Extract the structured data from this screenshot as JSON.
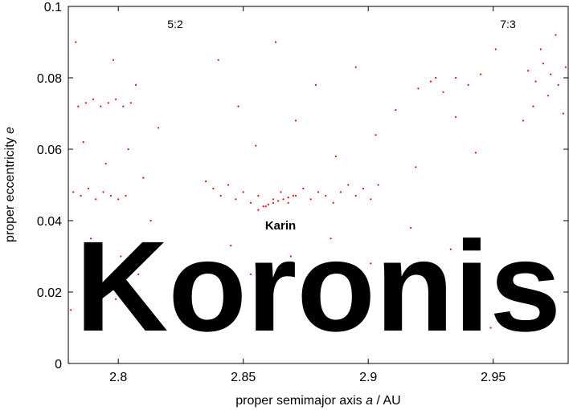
{
  "chart_data": {
    "type": "scatter",
    "title": "Koronis",
    "xlabel_prefix": "proper semimajor axis ",
    "xlabel_var": "a",
    "xlabel_suffix": " / AU",
    "ylabel_prefix": "proper eccentricity ",
    "ylabel_var": "e",
    "xlim": [
      2.78,
      2.98
    ],
    "ylim": [
      0,
      0.1
    ],
    "x_ticks": [
      {
        "value": 2.8,
        "label": "2.8"
      },
      {
        "value": 2.85,
        "label": "2.85"
      },
      {
        "value": 2.9,
        "label": "2.9"
      },
      {
        "value": 2.95,
        "label": "2.95"
      }
    ],
    "y_ticks": [
      {
        "value": 0,
        "label": "0"
      },
      {
        "value": 0.02,
        "label": "0.02"
      },
      {
        "value": 0.04,
        "label": "0.04"
      },
      {
        "value": 0.06,
        "label": "0.06"
      },
      {
        "value": 0.08,
        "label": "0.08"
      },
      {
        "value": 0.1,
        "label": "0.1"
      }
    ],
    "annotations": [
      {
        "text": "5:2",
        "x": 2.823,
        "y": 0.094
      },
      {
        "text": "7:3",
        "x": 2.958,
        "y": 0.094
      },
      {
        "text": "Karin",
        "x": 2.866,
        "y": 0.038
      }
    ],
    "point_color": "#ff0000",
    "grid": false,
    "legend": "none",
    "series": [
      {
        "points": [
          [
            2.782,
            0.048
          ],
          [
            2.785,
            0.047
          ],
          [
            2.788,
            0.049
          ],
          [
            2.791,
            0.046
          ],
          [
            2.794,
            0.048
          ],
          [
            2.797,
            0.047
          ],
          [
            2.8,
            0.046
          ],
          [
            2.803,
            0.047
          ],
          [
            2.784,
            0.072
          ],
          [
            2.787,
            0.073
          ],
          [
            2.79,
            0.074
          ],
          [
            2.793,
            0.072
          ],
          [
            2.796,
            0.073
          ],
          [
            2.799,
            0.074
          ],
          [
            2.802,
            0.072
          ],
          [
            2.805,
            0.073
          ],
          [
            2.783,
            0.09
          ],
          [
            2.786,
            0.062
          ],
          [
            2.789,
            0.035
          ],
          [
            2.792,
            0.021
          ],
          [
            2.795,
            0.056
          ],
          [
            2.798,
            0.085
          ],
          [
            2.801,
            0.03
          ],
          [
            2.804,
            0.06
          ],
          [
            2.807,
            0.078
          ],
          [
            2.81,
            0.052
          ],
          [
            2.813,
            0.04
          ],
          [
            2.816,
            0.066
          ],
          [
            2.781,
            0.015
          ],
          [
            2.79,
            0.01
          ],
          [
            2.799,
            0.018
          ],
          [
            2.808,
            0.025
          ],
          [
            2.835,
            0.051
          ],
          [
            2.838,
            0.049
          ],
          [
            2.841,
            0.047
          ],
          [
            2.844,
            0.05
          ],
          [
            2.847,
            0.046
          ],
          [
            2.85,
            0.048
          ],
          [
            2.853,
            0.045
          ],
          [
            2.856,
            0.047
          ],
          [
            2.859,
            0.044
          ],
          [
            2.862,
            0.046
          ],
          [
            2.865,
            0.048
          ],
          [
            2.868,
            0.045
          ],
          [
            2.871,
            0.047
          ],
          [
            2.874,
            0.049
          ],
          [
            2.877,
            0.046
          ],
          [
            2.88,
            0.048
          ],
          [
            2.883,
            0.047
          ],
          [
            2.886,
            0.045
          ],
          [
            2.889,
            0.048
          ],
          [
            2.892,
            0.05
          ],
          [
            2.895,
            0.047
          ],
          [
            2.898,
            0.049
          ],
          [
            2.901,
            0.046
          ],
          [
            2.904,
            0.05
          ],
          [
            2.856,
            0.043
          ],
          [
            2.858,
            0.044
          ],
          [
            2.86,
            0.0445
          ],
          [
            2.862,
            0.045
          ],
          [
            2.864,
            0.0455
          ],
          [
            2.866,
            0.046
          ],
          [
            2.868,
            0.0465
          ],
          [
            2.87,
            0.047
          ],
          [
            2.84,
            0.085
          ],
          [
            2.848,
            0.072
          ],
          [
            2.855,
            0.061
          ],
          [
            2.863,
            0.09
          ],
          [
            2.871,
            0.068
          ],
          [
            2.879,
            0.078
          ],
          [
            2.887,
            0.058
          ],
          [
            2.895,
            0.083
          ],
          [
            2.903,
            0.064
          ],
          [
            2.911,
            0.071
          ],
          [
            2.919,
            0.055
          ],
          [
            2.927,
            0.08
          ],
          [
            2.935,
            0.069
          ],
          [
            2.943,
            0.059
          ],
          [
            2.951,
            0.088
          ],
          [
            2.845,
            0.033
          ],
          [
            2.853,
            0.025
          ],
          [
            2.861,
            0.018
          ],
          [
            2.869,
            0.03
          ],
          [
            2.877,
            0.022
          ],
          [
            2.885,
            0.035
          ],
          [
            2.893,
            0.012
          ],
          [
            2.901,
            0.028
          ],
          [
            2.909,
            0.02
          ],
          [
            2.917,
            0.038
          ],
          [
            2.925,
            0.016
          ],
          [
            2.933,
            0.032
          ],
          [
            2.941,
            0.024
          ],
          [
            2.949,
            0.01
          ],
          [
            2.957,
            0.027
          ],
          [
            2.92,
            0.077
          ],
          [
            2.925,
            0.079
          ],
          [
            2.93,
            0.076
          ],
          [
            2.935,
            0.08
          ],
          [
            2.94,
            0.078
          ],
          [
            2.945,
            0.081
          ],
          [
            2.964,
            0.082
          ],
          [
            2.967,
            0.079
          ],
          [
            2.97,
            0.084
          ],
          [
            2.973,
            0.081
          ],
          [
            2.976,
            0.078
          ],
          [
            2.979,
            0.083
          ],
          [
            2.966,
            0.072
          ],
          [
            2.969,
            0.088
          ],
          [
            2.972,
            0.075
          ],
          [
            2.975,
            0.092
          ],
          [
            2.962,
            0.068
          ],
          [
            2.978,
            0.07
          ]
        ]
      }
    ]
  }
}
